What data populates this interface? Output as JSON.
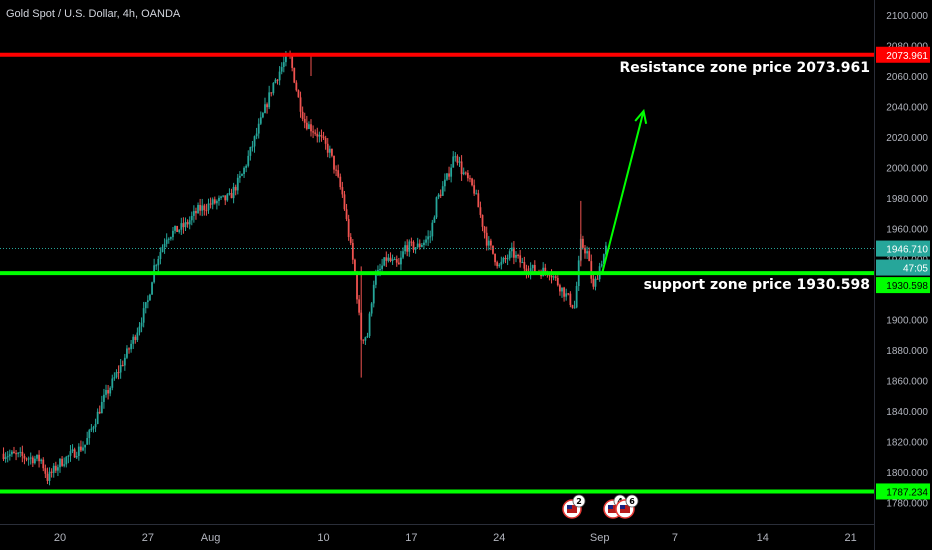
{
  "header": {
    "title": "Gold Spot / U.S. Dollar, 4h, OANDA"
  },
  "annotations": {
    "resistance": "Resistance zone price 2073.961",
    "support": "support zone price 1930.598"
  },
  "colors": {
    "background": "#000000",
    "up": "#26a69a",
    "down": "#ef5350",
    "resistance_line": "#ff0000",
    "support_line": "#00ff00",
    "arrow": "#00ff00",
    "axis_text": "#b2b5be",
    "current_price_tag": "#26a69a"
  },
  "price_tags": {
    "resistance": "2073.961",
    "current": "1946.710",
    "countdown": "47:05",
    "support": "1930.598",
    "bottom": "1787.234"
  },
  "events": [
    {
      "icon": "us-flag-icon",
      "count": "2"
    },
    {
      "icon": "us-flag-icon",
      "count": "4"
    },
    {
      "icon": "us-flag-icon",
      "count": "6"
    }
  ],
  "chart_data": {
    "type": "candlestick",
    "symbol": "XAUUSD",
    "timeframe": "4h",
    "ylim": [
      1770,
      2105
    ],
    "y_ticks": [
      "2100.000",
      "2080.000",
      "2060.000",
      "2040.000",
      "2020.000",
      "2000.000",
      "1980.000",
      "1960.000",
      "1940.000",
      "1920.000",
      "1900.000",
      "1880.000",
      "1860.000",
      "1840.000",
      "1820.000",
      "1800.000",
      "1780.000"
    ],
    "y_tick_values": [
      2100,
      2080,
      2060,
      2040,
      2020,
      2000,
      1980,
      1960,
      1940,
      1920,
      1900,
      1880,
      1860,
      1840,
      1820,
      1800,
      1780
    ],
    "x_ticks": [
      "20",
      "27",
      "Aug",
      "10",
      "17",
      "24",
      "Sep",
      "7",
      "14",
      "21"
    ],
    "x_tick_days": [
      0,
      7,
      12,
      21,
      28,
      35,
      43,
      49,
      56,
      63
    ],
    "horizontal_levels": [
      {
        "name": "resistance",
        "price": 2073.961
      },
      {
        "name": "support",
        "price": 1930.598
      },
      {
        "name": "bottom",
        "price": 1787.234
      }
    ],
    "current_price": 1946.71,
    "projection_arrow": {
      "from_day": 43.2,
      "from_price": 1930.6,
      "to_day": 46.5,
      "to_price": 2037
    },
    "price_path_anchors": [
      [
        -4.5,
        1812
      ],
      [
        -1.5,
        1808
      ],
      [
        -1,
        1796
      ],
      [
        0,
        1806
      ],
      [
        2,
        1818
      ],
      [
        3.5,
        1848
      ],
      [
        5,
        1872
      ],
      [
        6,
        1890
      ],
      [
        7,
        1912
      ],
      [
        7.5,
        1935
      ],
      [
        8.5,
        1955
      ],
      [
        10,
        1962
      ],
      [
        11,
        1972
      ],
      [
        12,
        1976
      ],
      [
        13.5,
        1980
      ],
      [
        14.5,
        1995
      ],
      [
        16,
        2030
      ],
      [
        17,
        2055
      ],
      [
        17.8,
        2068
      ],
      [
        18.3,
        2073
      ],
      [
        19,
        2045
      ],
      [
        19.5,
        2030
      ],
      [
        20.5,
        2022
      ],
      [
        21.5,
        2010
      ],
      [
        22.5,
        1982
      ],
      [
        23.5,
        1930
      ],
      [
        24,
        1888
      ],
      [
        24.5,
        1890
      ],
      [
        25,
        1925
      ],
      [
        26,
        1940
      ],
      [
        27,
        1935
      ],
      [
        27.5,
        1948
      ],
      [
        28.5,
        1948
      ],
      [
        29.5,
        1955
      ],
      [
        30,
        1978
      ],
      [
        30.8,
        1992
      ],
      [
        31.5,
        2010
      ],
      [
        32,
        1998
      ],
      [
        33,
        1985
      ],
      [
        34,
        1952
      ],
      [
        35,
        1935
      ],
      [
        36,
        1944
      ],
      [
        37,
        1935
      ],
      [
        38,
        1932
      ],
      [
        39,
        1932
      ],
      [
        40,
        1920
      ],
      [
        41,
        1908
      ],
      [
        41.5,
        1950
      ],
      [
        42,
        1944
      ],
      [
        42.5,
        1920
      ],
      [
        43,
        1935
      ],
      [
        43.5,
        1946.7
      ]
    ]
  }
}
